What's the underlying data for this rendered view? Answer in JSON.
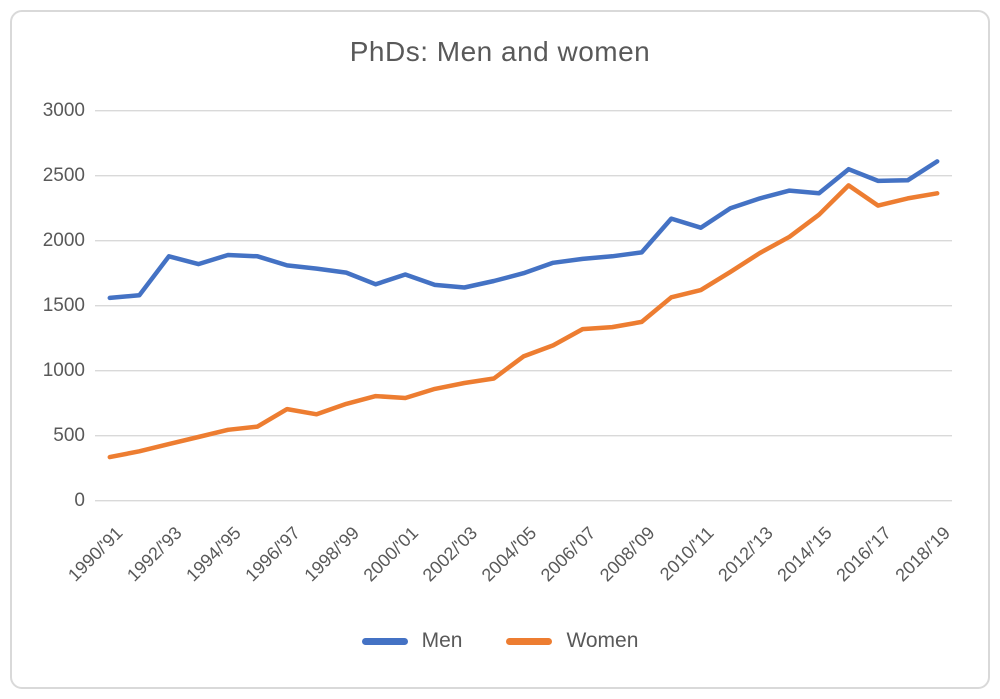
{
  "window": {
    "background": "#ffffff",
    "frame_border_color": "#d9d9d9"
  },
  "chart_data": {
    "type": "line",
    "title": "PhDs: Men and women",
    "categories": [
      "1990/'91",
      "1991/'92",
      "1992/'93",
      "1993/'94",
      "1994/'95",
      "1995/'96",
      "1996/'97",
      "1997/'98",
      "1998/'99",
      "1999/'00",
      "2000/'01",
      "2001/'02",
      "2002/'03",
      "2003/'04",
      "2004/'05",
      "2005/'06",
      "2006/'07",
      "2007/'08",
      "2008/'09",
      "2009/'10",
      "2010/'11",
      "2011/'12",
      "2012/'13",
      "2013/'14",
      "2014/'15",
      "2015/'16",
      "2016/'17",
      "2017/'18",
      "2018/'19"
    ],
    "x_axis": {
      "label_every_n": 2,
      "tick_labels_shown": [
        "1990/'91",
        "1992/'93",
        "1994/'95",
        "1996/'97",
        "1998/'99",
        "2000/'01",
        "2002/'03",
        "2004/'05",
        "2006/'07",
        "2008/'09",
        "2010/'11",
        "2012/'13",
        "2014/'15",
        "2016/'17",
        "2018/'19"
      ],
      "label_rotation_deg": 45
    },
    "y_axis": {
      "min": 0,
      "max": 3000,
      "tick_interval": 500,
      "tick_labels": [
        "0",
        "500",
        "1000",
        "1500",
        "2000",
        "2500",
        "3000"
      ]
    },
    "grid": true,
    "gridline_color": "#d9d9d9",
    "text_color": "#595959",
    "legend": {
      "position": "bottom",
      "entries": [
        "Men",
        "Women"
      ]
    },
    "series": [
      {
        "name": "Men",
        "color": "#4472C4",
        "values": [
          1560,
          1580,
          1880,
          1820,
          1890,
          1880,
          1810,
          1785,
          1755,
          1665,
          1740,
          1660,
          1640,
          1690,
          1750,
          1830,
          1860,
          1880,
          1910,
          2170,
          2100,
          2250,
          2325,
          2385,
          2365,
          2550,
          2460,
          2465,
          2610
        ]
      },
      {
        "name": "Women",
        "color": "#ED7D31",
        "values": [
          335,
          380,
          435,
          490,
          545,
          570,
          705,
          665,
          745,
          805,
          790,
          860,
          905,
          940,
          1110,
          1195,
          1320,
          1335,
          1375,
          1565,
          1620,
          1760,
          1905,
          2030,
          2200,
          2425,
          2270,
          2325,
          2365
        ]
      }
    ]
  }
}
